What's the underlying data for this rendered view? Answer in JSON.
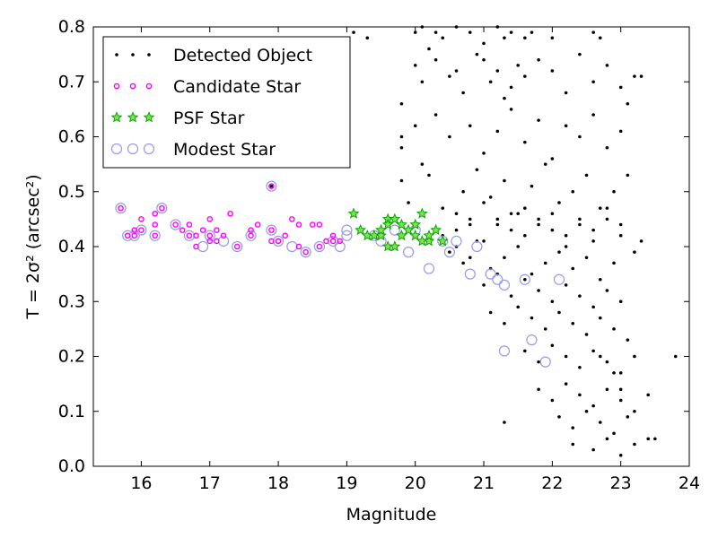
{
  "chart_data": {
    "type": "scatter",
    "xlabel": "Magnitude",
    "ylabel": "T = 2σ² (arcsec²)",
    "xlim": [
      15.3,
      24.0
    ],
    "ylim": [
      0.0,
      0.8
    ],
    "x_ticks": [
      "16",
      "17",
      "18",
      "19",
      "20",
      "21",
      "22",
      "23",
      "24"
    ],
    "y_ticks": [
      "0.0",
      "0.1",
      "0.2",
      "0.3",
      "0.4",
      "0.5",
      "0.6",
      "0.7",
      "0.8"
    ],
    "grid": false,
    "legend_position": "top-left",
    "series": [
      {
        "name": "Detected Object",
        "marker": "dot",
        "color": "#000000",
        "x": [
          17.9,
          19.1,
          19.3,
          20.0,
          20.1,
          20.2,
          20.3,
          20.4,
          20.6,
          20.8,
          21.0,
          21.2,
          21.3,
          21.4,
          21.6,
          21.7,
          22.0,
          22.6,
          22.7,
          23.2,
          19.8,
          19.8,
          20.0,
          20.1,
          20.0,
          20.3,
          20.5,
          20.6,
          20.7,
          20.9,
          21.0,
          21.1,
          21.2,
          21.3,
          21.4,
          21.5,
          21.6,
          21.8,
          22.0,
          22.2,
          22.4,
          22.6,
          22.8,
          23.0,
          23.1,
          23.3,
          19.8,
          20.1,
          20.3,
          20.5,
          20.8,
          21.0,
          21.2,
          21.4,
          21.6,
          21.8,
          22.0,
          22.2,
          22.4,
          22.6,
          22.8,
          23.0,
          19.8,
          19.9,
          20.2,
          20.4,
          20.7,
          20.9,
          21.1,
          21.3,
          21.5,
          21.7,
          21.9,
          22.1,
          22.3,
          22.5,
          22.7,
          22.9,
          23.1,
          20.6,
          20.8,
          21.0,
          21.2,
          21.4,
          21.6,
          21.8,
          22.0,
          22.2,
          22.4,
          22.6,
          22.8,
          23.0,
          23.2,
          20.5,
          20.7,
          20.9,
          21.1,
          21.3,
          21.5,
          21.7,
          21.9,
          22.1,
          22.3,
          22.5,
          22.7,
          22.9,
          20.2,
          20.6,
          20.8,
          21.0,
          21.2,
          21.4,
          21.6,
          21.8,
          22.0,
          22.2,
          22.4,
          22.6,
          22.8,
          23.0,
          20.4,
          20.6,
          20.8,
          21.0,
          21.2,
          21.4,
          21.6,
          21.8,
          22.0,
          22.2,
          22.4,
          22.6,
          22.8,
          23.0,
          23.3,
          21.1,
          21.3,
          21.5,
          21.7,
          21.9,
          22.1,
          22.3,
          22.5,
          22.7,
          22.9,
          23.1,
          21.6,
          21.8,
          22.0,
          22.2,
          22.4,
          22.6,
          22.8,
          23.0,
          23.2,
          21.8,
          22.0,
          22.2,
          22.4,
          22.6,
          22.8,
          23.0,
          23.2,
          23.4,
          22.1,
          22.3,
          22.5,
          22.7,
          22.9,
          23.1,
          23.4,
          23.8,
          22.3,
          22.6,
          22.8,
          23.0,
          23.2,
          23.5,
          21.3,
          22.7,
          22.9,
          23.0
        ],
        "y": [
          0.51,
          0.79,
          0.78,
          0.79,
          0.8,
          0.76,
          0.79,
          0.78,
          0.8,
          0.79,
          0.77,
          0.8,
          0.78,
          0.79,
          0.78,
          0.79,
          0.78,
          0.79,
          0.78,
          0.71,
          0.66,
          0.6,
          0.62,
          0.7,
          0.73,
          0.74,
          0.71,
          0.72,
          0.68,
          0.75,
          0.74,
          0.7,
          0.72,
          0.67,
          0.69,
          0.73,
          0.71,
          0.74,
          0.72,
          0.68,
          0.75,
          0.7,
          0.73,
          0.69,
          0.66,
          0.71,
          0.58,
          0.55,
          0.64,
          0.6,
          0.62,
          0.57,
          0.61,
          0.65,
          0.59,
          0.63,
          0.56,
          0.62,
          0.6,
          0.64,
          0.58,
          0.61,
          0.52,
          0.48,
          0.53,
          0.47,
          0.5,
          0.54,
          0.49,
          0.52,
          0.46,
          0.51,
          0.55,
          0.48,
          0.5,
          0.53,
          0.47,
          0.5,
          0.53,
          0.43,
          0.45,
          0.41,
          0.44,
          0.46,
          0.42,
          0.45,
          0.43,
          0.4,
          0.44,
          0.41,
          0.45,
          0.42,
          0.39,
          0.39,
          0.37,
          0.41,
          0.36,
          0.38,
          0.4,
          0.35,
          0.37,
          0.39,
          0.36,
          0.38,
          0.34,
          0.37,
          0.42,
          0.4,
          0.38,
          0.33,
          0.35,
          0.31,
          0.34,
          0.32,
          0.3,
          0.33,
          0.31,
          0.29,
          0.32,
          0.3,
          0.42,
          0.46,
          0.44,
          0.48,
          0.45,
          0.43,
          0.47,
          0.44,
          0.46,
          0.42,
          0.45,
          0.43,
          0.47,
          0.44,
          0.41,
          0.28,
          0.26,
          0.29,
          0.27,
          0.25,
          0.28,
          0.26,
          0.24,
          0.27,
          0.25,
          0.23,
          0.21,
          0.19,
          0.22,
          0.2,
          0.18,
          0.21,
          0.19,
          0.17,
          0.2,
          0.14,
          0.12,
          0.15,
          0.13,
          0.11,
          0.14,
          0.12,
          0.1,
          0.13,
          0.09,
          0.07,
          0.1,
          0.08,
          0.06,
          0.09,
          0.05,
          0.2,
          0.04,
          0.03,
          0.05,
          0.02,
          0.04,
          0.05,
          0.08,
          0.2,
          0.17,
          0.14
        ]
      },
      {
        "name": "Candidate Star",
        "marker": "circle-small",
        "color": "#ff00ff",
        "x": [
          15.7,
          15.8,
          15.9,
          16.0,
          16.0,
          16.2,
          16.2,
          16.3,
          16.5,
          16.6,
          16.7,
          16.8,
          16.8,
          16.9,
          17.0,
          17.0,
          17.1,
          17.1,
          17.2,
          17.3,
          17.4,
          17.6,
          17.7,
          17.9,
          17.9,
          18.0,
          18.1,
          18.2,
          18.3,
          18.4,
          18.5,
          18.6,
          18.7,
          18.8,
          18.9,
          15.9,
          16.2,
          16.7,
          17.0,
          17.6,
          18.0,
          18.3,
          18.6,
          18.8,
          17.9
        ],
        "y": [
          0.47,
          0.42,
          0.42,
          0.43,
          0.45,
          0.42,
          0.46,
          0.47,
          0.44,
          0.43,
          0.42,
          0.42,
          0.4,
          0.43,
          0.42,
          0.45,
          0.43,
          0.41,
          0.42,
          0.46,
          0.4,
          0.42,
          0.44,
          0.43,
          0.41,
          0.41,
          0.42,
          0.45,
          0.44,
          0.39,
          0.44,
          0.4,
          0.41,
          0.41,
          0.41,
          0.43,
          0.44,
          0.44,
          0.41,
          0.43,
          0.41,
          0.4,
          0.44,
          0.42,
          0.51
        ]
      },
      {
        "name": "PSF Star",
        "marker": "star",
        "color": "#00aa00",
        "x": [
          19.1,
          19.2,
          19.3,
          19.4,
          19.5,
          19.6,
          19.6,
          19.7,
          19.7,
          19.8,
          19.8,
          19.9,
          20.0,
          20.0,
          20.1,
          20.2,
          20.2,
          20.3,
          20.4,
          19.6,
          20.1,
          19.5
        ],
        "y": [
          0.46,
          0.43,
          0.42,
          0.42,
          0.42,
          0.45,
          0.4,
          0.45,
          0.4,
          0.44,
          0.42,
          0.43,
          0.42,
          0.44,
          0.41,
          0.41,
          0.42,
          0.43,
          0.41,
          0.44,
          0.46,
          0.43
        ]
      },
      {
        "name": "Modest Star",
        "marker": "circle-open",
        "color": "#9999ee",
        "x": [
          15.7,
          15.8,
          15.9,
          16.0,
          16.2,
          16.3,
          16.5,
          16.7,
          16.9,
          17.0,
          17.2,
          17.4,
          17.6,
          17.9,
          18.0,
          18.2,
          18.4,
          18.6,
          18.8,
          19.0,
          19.4,
          19.7,
          19.9,
          20.0,
          20.2,
          20.4,
          20.6,
          20.8,
          20.9,
          21.1,
          21.2,
          21.3,
          21.3,
          21.7,
          21.9,
          22.1,
          17.9,
          18.9,
          19.0,
          19.5,
          20.5,
          21.6
        ],
        "y": [
          0.47,
          0.42,
          0.42,
          0.43,
          0.42,
          0.47,
          0.44,
          0.42,
          0.4,
          0.42,
          0.41,
          0.4,
          0.42,
          0.43,
          0.41,
          0.4,
          0.39,
          0.4,
          0.41,
          0.43,
          0.42,
          0.43,
          0.39,
          0.43,
          0.36,
          0.41,
          0.41,
          0.35,
          0.4,
          0.35,
          0.34,
          0.33,
          0.21,
          0.23,
          0.19,
          0.34,
          0.51,
          0.4,
          0.42,
          0.41,
          0.39,
          0.34
        ]
      }
    ]
  }
}
